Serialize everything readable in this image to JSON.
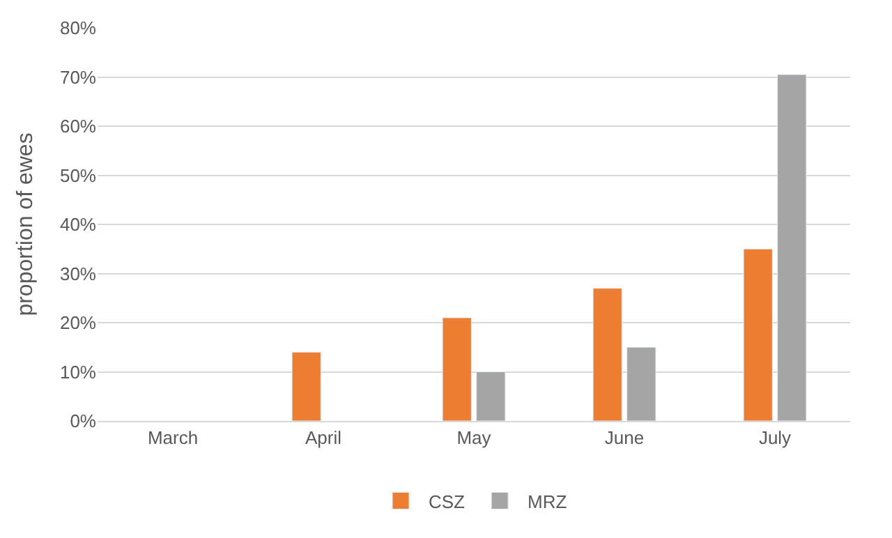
{
  "chart_data": {
    "type": "bar",
    "ylabel": "proportion of ewes",
    "categories": [
      "March",
      "April",
      "May",
      "June",
      "July"
    ],
    "series": [
      {
        "name": "CSZ",
        "color": "#ed7d31",
        "values": [
          null,
          14,
          21,
          27,
          35
        ]
      },
      {
        "name": "MRZ",
        "color": "#a5a5a5",
        "values": [
          null,
          null,
          10,
          15,
          70.5
        ]
      }
    ],
    "ylim": [
      0,
      80
    ],
    "yticks": [
      {
        "value": 0,
        "label": "0%"
      },
      {
        "value": 10,
        "label": "10%"
      },
      {
        "value": 20,
        "label": "20%"
      },
      {
        "value": 30,
        "label": "30%"
      },
      {
        "value": 40,
        "label": "40%"
      },
      {
        "value": 50,
        "label": "50%"
      },
      {
        "value": 60,
        "label": "60%"
      },
      {
        "value": 70,
        "label": "70%"
      },
      {
        "value": 80,
        "label": "80%"
      }
    ],
    "grid": "y",
    "legend": "bottom"
  }
}
